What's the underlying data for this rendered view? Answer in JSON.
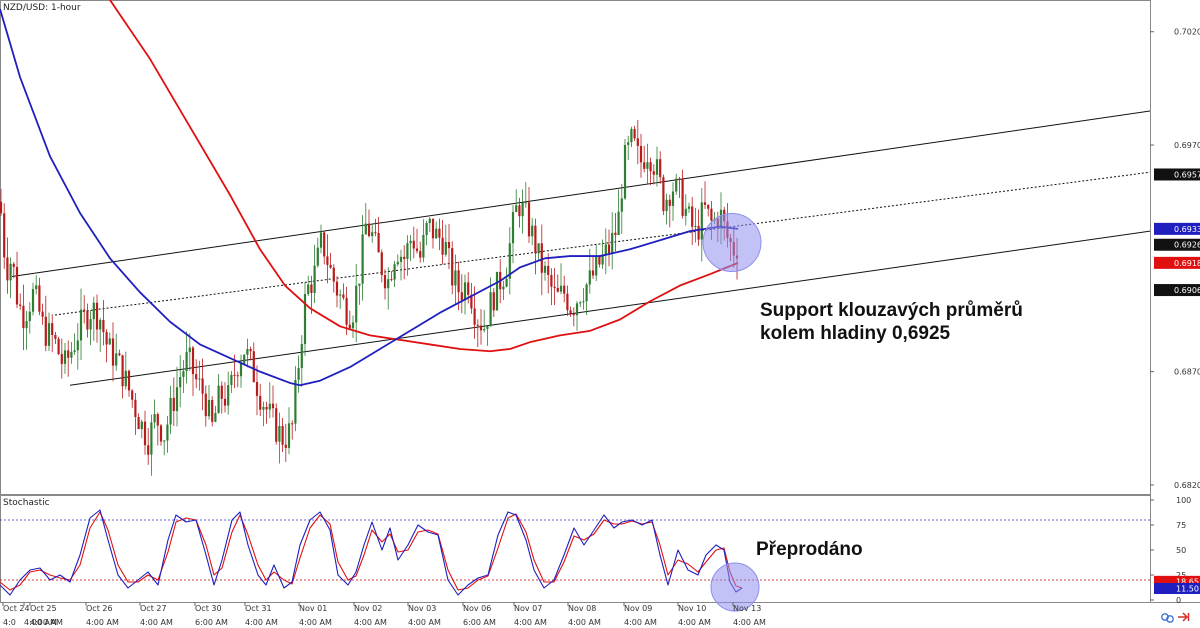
{
  "chart_title": "NZD/USD: 1-hour",
  "indicator_title": "Stochastic",
  "annotations": {
    "support_line1": "Support klouzavých průměrů",
    "support_line2": "kolem hladiny 0,6925",
    "oversold": "Přeprodáno"
  },
  "colors": {
    "bull_candle": "#2e7d32",
    "bear_candle": "#b71c1c",
    "ma_fast": "#1f1fbf",
    "ma_slow": "#e01010",
    "channel": "#111111",
    "highlight": "#8f8fee",
    "level_line": "#cc0000",
    "overbought_line": "#3333cc"
  },
  "chart_data": {
    "type": "candlestick",
    "title": "NZD/USD: 1-hour",
    "y_ticks": [
      "0.7020",
      "0.6970",
      "0.6870",
      "0.6820"
    ],
    "ylim": [
      0.6816,
      0.7034
    ],
    "price_tags": [
      {
        "label": "0.6957",
        "value": 0.6957,
        "style": "dark"
      },
      {
        "label": "0.6933",
        "value": 0.6933,
        "style": "blue"
      },
      {
        "label": "0.6926",
        "value": 0.6926,
        "style": "dark"
      },
      {
        "label": "0.6918",
        "value": 0.6918,
        "style": "red"
      },
      {
        "label": "0.6906",
        "value": 0.6906,
        "style": "dark"
      }
    ],
    "date_labels": [
      {
        "date": "Oct 24",
        "time": "4:0"
      },
      {
        "date": "",
        "time": "4:00 AM"
      },
      {
        "date": "Oct 25",
        "time": "4:00 AM"
      },
      {
        "date": "Oct 26",
        "time": "4:00 AM"
      },
      {
        "date": "Oct 27",
        "time": "4:00 AM"
      },
      {
        "date": "Oct 30",
        "time": "6:00 AM"
      },
      {
        "date": "Oct 31",
        "time": "4:00 AM"
      },
      {
        "date": "Nov 01",
        "time": "4:00 AM"
      },
      {
        "date": "Nov 02",
        "time": "4:00 AM"
      },
      {
        "date": "Nov 03",
        "time": "4:00 AM"
      },
      {
        "date": "Nov 06",
        "time": "6:00 AM"
      },
      {
        "date": "Nov 07",
        "time": "4:00 AM"
      },
      {
        "date": "Nov 08",
        "time": "4:00 AM"
      },
      {
        "date": "Nov 09",
        "time": "4:00 AM"
      },
      {
        "date": "Nov 10",
        "time": "4:00 AM"
      },
      {
        "date": "Nov 13",
        "time": "4:00 AM"
      }
    ],
    "price_path": [
      [
        0,
        0.6945
      ],
      [
        6,
        0.6915
      ],
      [
        12,
        0.692
      ],
      [
        18,
        0.69
      ],
      [
        24,
        0.6895
      ],
      [
        34,
        0.6905
      ],
      [
        44,
        0.6888
      ],
      [
        54,
        0.6884
      ],
      [
        64,
        0.6872
      ],
      [
        72,
        0.688
      ],
      [
        82,
        0.6892
      ],
      [
        92,
        0.6898
      ],
      [
        100,
        0.6894
      ],
      [
        108,
        0.688
      ],
      [
        116,
        0.6876
      ],
      [
        124,
        0.6868
      ],
      [
        132,
        0.6858
      ],
      [
        140,
        0.6848
      ],
      [
        148,
        0.684
      ],
      [
        156,
        0.685
      ],
      [
        164,
        0.6842
      ],
      [
        172,
        0.6855
      ],
      [
        180,
        0.6868
      ],
      [
        188,
        0.6876
      ],
      [
        196,
        0.6866
      ],
      [
        204,
        0.686
      ],
      [
        212,
        0.6845
      ],
      [
        220,
        0.686
      ],
      [
        228,
        0.6858
      ],
      [
        236,
        0.6872
      ],
      [
        244,
        0.688
      ],
      [
        252,
        0.6872
      ],
      [
        260,
        0.686
      ],
      [
        268,
        0.6852
      ],
      [
        276,
        0.6845
      ],
      [
        284,
        0.684
      ],
      [
        292,
        0.6845
      ],
      [
        300,
        0.688
      ],
      [
        306,
        0.6905
      ],
      [
        314,
        0.6912
      ],
      [
        322,
        0.6928
      ],
      [
        330,
        0.6915
      ],
      [
        338,
        0.6905
      ],
      [
        346,
        0.6898
      ],
      [
        352,
        0.6895
      ],
      [
        360,
        0.6915
      ],
      [
        366,
        0.6935
      ],
      [
        372,
        0.693
      ],
      [
        380,
        0.6918
      ],
      [
        388,
        0.691
      ],
      [
        396,
        0.6925
      ],
      [
        404,
        0.692
      ],
      [
        412,
        0.693
      ],
      [
        420,
        0.692
      ],
      [
        428,
        0.6935
      ],
      [
        436,
        0.693
      ],
      [
        444,
        0.6928
      ],
      [
        452,
        0.6912
      ],
      [
        460,
        0.6905
      ],
      [
        468,
        0.691
      ],
      [
        476,
        0.6895
      ],
      [
        484,
        0.689
      ],
      [
        492,
        0.6902
      ],
      [
        500,
        0.691
      ],
      [
        506,
        0.6915
      ],
      [
        512,
        0.6932
      ],
      [
        518,
        0.6945
      ],
      [
        526,
        0.6938
      ],
      [
        534,
        0.6928
      ],
      [
        540,
        0.6918
      ],
      [
        548,
        0.691
      ],
      [
        556,
        0.6902
      ],
      [
        564,
        0.6905
      ],
      [
        572,
        0.6898
      ],
      [
        580,
        0.6905
      ],
      [
        590,
        0.691
      ],
      [
        600,
        0.6918
      ],
      [
        610,
        0.6925
      ],
      [
        618,
        0.6935
      ],
      [
        624,
        0.6962
      ],
      [
        632,
        0.6972
      ],
      [
        640,
        0.6962
      ],
      [
        648,
        0.6968
      ],
      [
        656,
        0.696
      ],
      [
        664,
        0.6945
      ],
      [
        672,
        0.6952
      ],
      [
        680,
        0.6948
      ],
      [
        688,
        0.6938
      ],
      [
        696,
        0.693
      ],
      [
        704,
        0.6942
      ],
      [
        712,
        0.6935
      ],
      [
        720,
        0.694
      ],
      [
        728,
        0.6928
      ],
      [
        734,
        0.6924
      ],
      [
        738,
        0.6926
      ]
    ],
    "ma_fast_path": [
      [
        0,
        0.703
      ],
      [
        20,
        0.7
      ],
      [
        50,
        0.6965
      ],
      [
        80,
        0.694
      ],
      [
        110,
        0.692
      ],
      [
        140,
        0.6905
      ],
      [
        170,
        0.6892
      ],
      [
        200,
        0.6882
      ],
      [
        230,
        0.6876
      ],
      [
        260,
        0.687
      ],
      [
        290,
        0.6865
      ],
      [
        300,
        0.6864
      ],
      [
        320,
        0.6866
      ],
      [
        350,
        0.6872
      ],
      [
        380,
        0.688
      ],
      [
        410,
        0.6888
      ],
      [
        440,
        0.6896
      ],
      [
        470,
        0.6903
      ],
      [
        500,
        0.691
      ],
      [
        520,
        0.6916
      ],
      [
        545,
        0.692
      ],
      [
        570,
        0.6921
      ],
      [
        600,
        0.6921
      ],
      [
        630,
        0.6924
      ],
      [
        660,
        0.6928
      ],
      [
        690,
        0.6932
      ],
      [
        720,
        0.6934
      ],
      [
        738,
        0.6933
      ]
    ],
    "ma_slow_path": [
      [
        110,
        0.7034
      ],
      [
        150,
        0.7008
      ],
      [
        190,
        0.6978
      ],
      [
        230,
        0.6948
      ],
      [
        260,
        0.6924
      ],
      [
        285,
        0.6908
      ],
      [
        310,
        0.6898
      ],
      [
        340,
        0.689
      ],
      [
        370,
        0.6886
      ],
      [
        400,
        0.6884
      ],
      [
        430,
        0.6882
      ],
      [
        460,
        0.688
      ],
      [
        490,
        0.6879
      ],
      [
        510,
        0.688
      ],
      [
        530,
        0.6883
      ],
      [
        560,
        0.6886
      ],
      [
        590,
        0.6888
      ],
      [
        620,
        0.6893
      ],
      [
        650,
        0.6901
      ],
      [
        680,
        0.6908
      ],
      [
        710,
        0.6913
      ],
      [
        738,
        0.6918
      ]
    ],
    "channel_lines": [
      {
        "style": "solid",
        "from": [
          12,
          0.6912
        ],
        "to": [
          1150,
          0.6985
        ]
      },
      {
        "style": "dotted",
        "from": [
          55,
          0.6895
        ],
        "to": [
          1150,
          0.6958
        ]
      },
      {
        "style": "solid",
        "from": [
          70,
          0.6864
        ],
        "to": [
          1150,
          0.6932
        ]
      }
    ],
    "highlight_circles": [
      {
        "pane": "price",
        "center": [
          732,
          0.6927
        ]
      },
      {
        "pane": "stochastic",
        "center": [
          735,
          13
        ]
      }
    ],
    "stochastic": {
      "ylim": [
        0,
        100
      ],
      "y_ticks": [
        "100",
        "75",
        "50",
        "25",
        "0"
      ],
      "levels": [
        80,
        20
      ],
      "current_tags": [
        {
          "label": "18.65",
          "value": 18.65,
          "style": "red"
        },
        {
          "label": "11.50",
          "value": 11.5,
          "style": "blue"
        }
      ],
      "k_path": [
        [
          0,
          15
        ],
        [
          10,
          5
        ],
        [
          20,
          20
        ],
        [
          30,
          30
        ],
        [
          40,
          32
        ],
        [
          50,
          20
        ],
        [
          60,
          25
        ],
        [
          70,
          18
        ],
        [
          80,
          45
        ],
        [
          90,
          82
        ],
        [
          100,
          90
        ],
        [
          108,
          60
        ],
        [
          118,
          25
        ],
        [
          128,
          12
        ],
        [
          138,
          20
        ],
        [
          148,
          28
        ],
        [
          158,
          15
        ],
        [
          168,
          60
        ],
        [
          176,
          85
        ],
        [
          186,
          78
        ],
        [
          196,
          80
        ],
        [
          206,
          45
        ],
        [
          214,
          15
        ],
        [
          222,
          40
        ],
        [
          232,
          80
        ],
        [
          240,
          88
        ],
        [
          248,
          55
        ],
        [
          258,
          25
        ],
        [
          266,
          15
        ],
        [
          274,
          35
        ],
        [
          284,
          12
        ],
        [
          292,
          18
        ],
        [
          300,
          55
        ],
        [
          310,
          80
        ],
        [
          320,
          88
        ],
        [
          330,
          70
        ],
        [
          338,
          25
        ],
        [
          348,
          15
        ],
        [
          356,
          28
        ],
        [
          364,
          55
        ],
        [
          372,
          78
        ],
        [
          382,
          50
        ],
        [
          390,
          72
        ],
        [
          398,
          40
        ],
        [
          408,
          55
        ],
        [
          418,
          75
        ],
        [
          428,
          68
        ],
        [
          438,
          65
        ],
        [
          448,
          20
        ],
        [
          458,
          5
        ],
        [
          468,
          15
        ],
        [
          478,
          22
        ],
        [
          488,
          25
        ],
        [
          498,
          65
        ],
        [
          508,
          88
        ],
        [
          516,
          85
        ],
        [
          526,
          60
        ],
        [
          534,
          30
        ],
        [
          544,
          12
        ],
        [
          554,
          20
        ],
        [
          564,
          45
        ],
        [
          574,
          72
        ],
        [
          584,
          55
        ],
        [
          594,
          70
        ],
        [
          604,
          85
        ],
        [
          614,
          72
        ],
        [
          622,
          78
        ],
        [
          632,
          80
        ],
        [
          642,
          75
        ],
        [
          652,
          80
        ],
        [
          660,
          45
        ],
        [
          668,
          15
        ],
        [
          678,
          50
        ],
        [
          688,
          30
        ],
        [
          698,
          25
        ],
        [
          706,
          45
        ],
        [
          716,
          55
        ],
        [
          724,
          50
        ],
        [
          730,
          18
        ],
        [
          736,
          8
        ],
        [
          742,
          12
        ]
      ],
      "d_path": [
        [
          0,
          18
        ],
        [
          10,
          10
        ],
        [
          20,
          15
        ],
        [
          30,
          28
        ],
        [
          40,
          30
        ],
        [
          50,
          25
        ],
        [
          60,
          22
        ],
        [
          70,
          20
        ],
        [
          80,
          35
        ],
        [
          90,
          72
        ],
        [
          100,
          88
        ],
        [
          108,
          70
        ],
        [
          118,
          35
        ],
        [
          128,
          18
        ],
        [
          138,
          18
        ],
        [
          148,
          25
        ],
        [
          158,
          20
        ],
        [
          168,
          48
        ],
        [
          176,
          78
        ],
        [
          186,
          82
        ],
        [
          196,
          80
        ],
        [
          206,
          55
        ],
        [
          214,
          25
        ],
        [
          222,
          32
        ],
        [
          232,
          68
        ],
        [
          240,
          85
        ],
        [
          248,
          65
        ],
        [
          258,
          35
        ],
        [
          266,
          20
        ],
        [
          274,
          28
        ],
        [
          284,
          20
        ],
        [
          292,
          16
        ],
        [
          300,
          42
        ],
        [
          310,
          72
        ],
        [
          320,
          85
        ],
        [
          330,
          76
        ],
        [
          338,
          38
        ],
        [
          348,
          20
        ],
        [
          356,
          24
        ],
        [
          364,
          45
        ],
        [
          372,
          70
        ],
        [
          382,
          58
        ],
        [
          390,
          66
        ],
        [
          398,
          48
        ],
        [
          408,
          50
        ],
        [
          418,
          68
        ],
        [
          428,
          70
        ],
        [
          438,
          66
        ],
        [
          448,
          30
        ],
        [
          458,
          10
        ],
        [
          468,
          12
        ],
        [
          478,
          20
        ],
        [
          488,
          24
        ],
        [
          498,
          52
        ],
        [
          508,
          82
        ],
        [
          516,
          86
        ],
        [
          526,
          68
        ],
        [
          534,
          40
        ],
        [
          544,
          18
        ],
        [
          554,
          18
        ],
        [
          564,
          38
        ],
        [
          574,
          64
        ],
        [
          584,
          60
        ],
        [
          594,
          66
        ],
        [
          604,
          80
        ],
        [
          614,
          76
        ],
        [
          622,
          76
        ],
        [
          632,
          79
        ],
        [
          642,
          76
        ],
        [
          652,
          78
        ],
        [
          660,
          55
        ],
        [
          668,
          25
        ],
        [
          678,
          40
        ],
        [
          688,
          36
        ],
        [
          698,
          28
        ],
        [
          706,
          38
        ],
        [
          716,
          50
        ],
        [
          724,
          52
        ],
        [
          730,
          28
        ],
        [
          736,
          14
        ],
        [
          742,
          12
        ]
      ]
    }
  }
}
